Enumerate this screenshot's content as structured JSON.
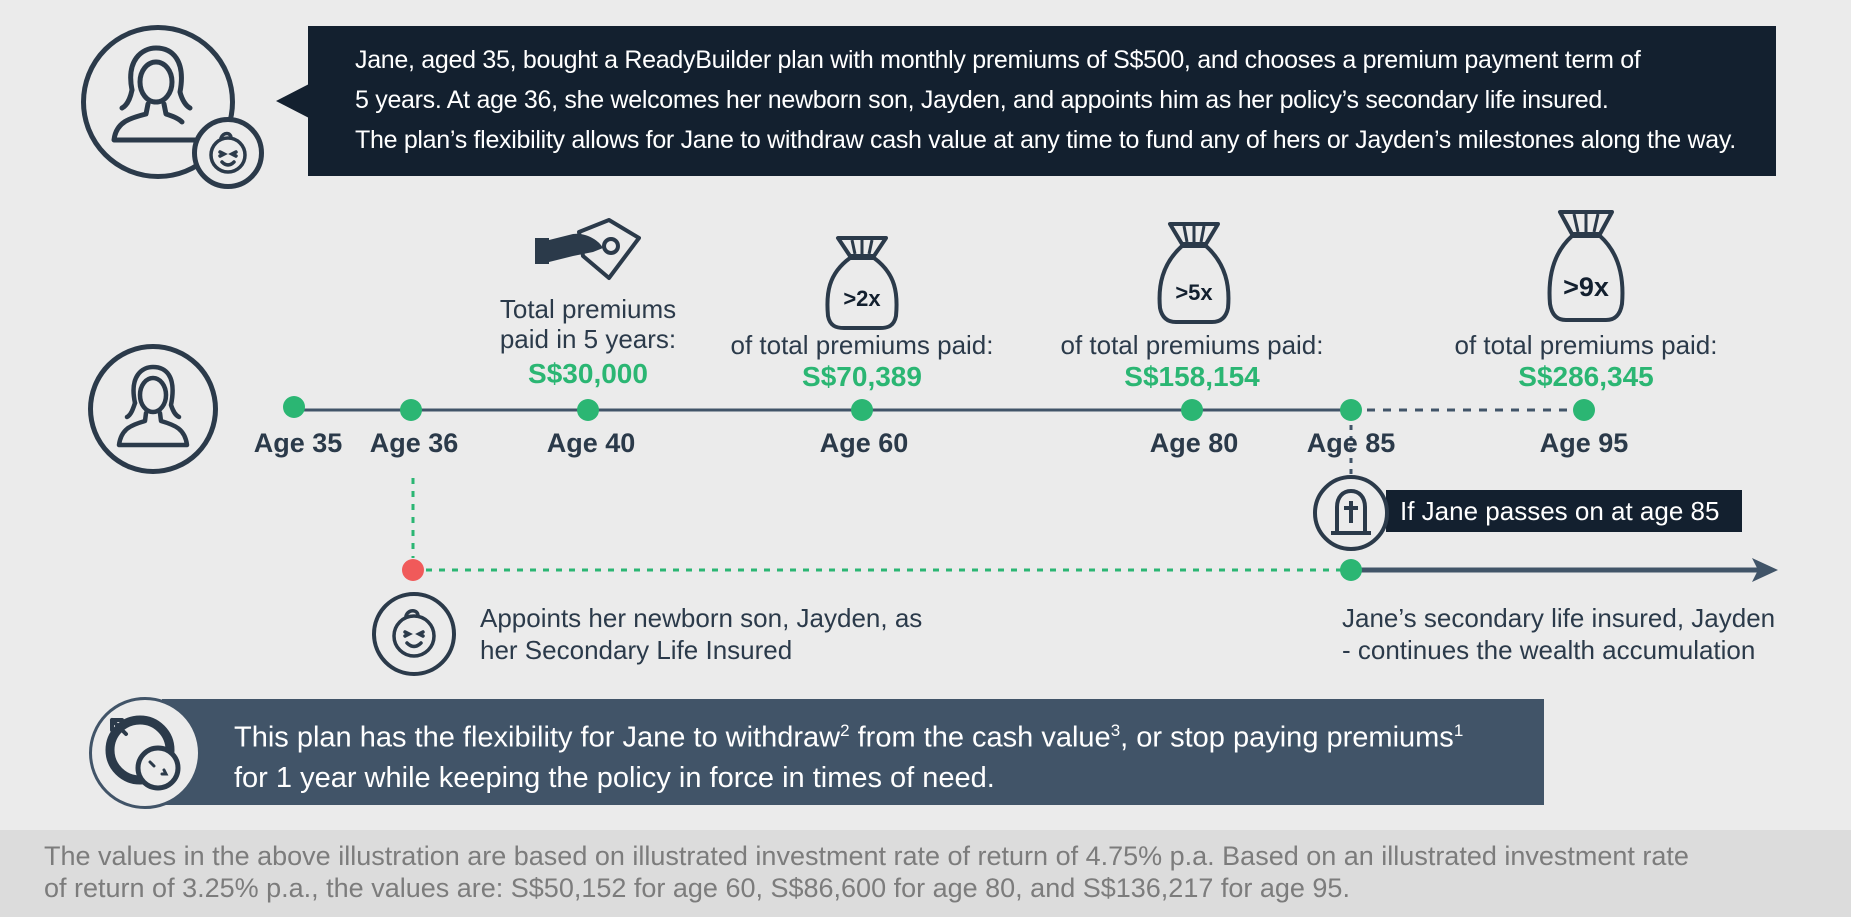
{
  "intro": {
    "lines": [
      "Jane, aged 35, bought a ReadyBuilder plan with monthly premiums of S$500, and chooses a premium payment term of",
      "5 years. At age 36, she welcomes her newborn son, Jayden, and appoints him as her policy’s secondary life insured.",
      "The plan’s flexibility allows for Jane to withdraw cash value at any time to fund any of hers or Jayden’s milestones along the way."
    ]
  },
  "timeline": {
    "ages": [
      "Age 35",
      "Age 36",
      "Age 40",
      "Age 60",
      "Age 80",
      "Age 85",
      "Age 95"
    ],
    "milestones": [
      {
        "line1": "Total premiums",
        "line2": "paid in 5 years:",
        "amount": "S$30,000",
        "icon": "hand-with-cash-icon"
      },
      {
        "multiple": ">2x",
        "caption": "of total premiums paid:",
        "amount": "S$70,389",
        "icon": "money-bag-icon"
      },
      {
        "multiple": ">5x",
        "caption": "of total premiums paid:",
        "amount": "S$158,154",
        "icon": "money-bag-icon"
      },
      {
        "multiple": ">9x",
        "caption": "of total premiums paid:",
        "amount": "S$286,345",
        "icon": "money-bag-icon"
      }
    ],
    "passes_label": "If Jane passes on at age 85",
    "appoint_line1": "Appoints her newborn son, Jayden, as",
    "appoint_line2": "her Secondary Life Insured",
    "continue_line1": "Jane’s secondary life insured, Jayden",
    "continue_line2": "-  continues the wealth accumulation"
  },
  "flexibility": {
    "line1_a": "This plan has the flexibility for Jane to withdraw",
    "sup1": "2",
    "line1_b": " from the cash value",
    "sup2": "3",
    "line1_c": ", or stop paying premiums",
    "sup3": "1",
    "line2": "for 1 year while keeping the policy in force in times of need."
  },
  "footer": {
    "line1": "The values in the above illustration are based on illustrated investment rate of return of 4.75% p.a. Based on an illustrated investment rate",
    "line2": "of return of 3.25% p.a., the values are: S$50,152 for age 60, S$86,600 for age 80, and S$136,217 for age 95."
  },
  "colors": {
    "navy": "#13202f",
    "slate": "#415468",
    "green": "#2bb673",
    "red": "#f05a5a",
    "background": "#ebebeb"
  }
}
